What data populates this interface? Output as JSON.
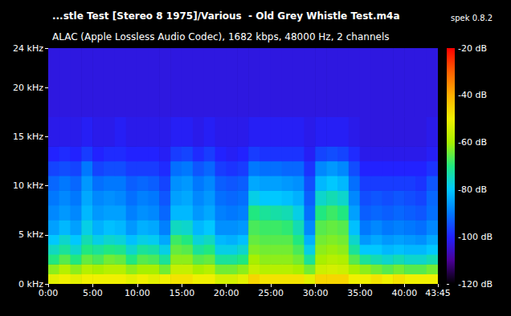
{
  "chart_data": {
    "type": "heatmap",
    "title": "...stle Test [Stereo 8 1975]/Various  - Old Grey Whistle Test.m4a",
    "annotations": [
      "spek 0.8.2"
    ],
    "subtitle": "ALAC (Apple Lossless Audio Codec), 1682 kbps, 48000 Hz, 2 channels",
    "xlim": [
      0,
      2625
    ],
    "xticks": [
      {
        "value": 0,
        "label": "0:00"
      },
      {
        "value": 300,
        "label": "5:00"
      },
      {
        "value": 600,
        "label": "10:00"
      },
      {
        "value": 900,
        "label": "15:00"
      },
      {
        "value": 1200,
        "label": "20:00"
      },
      {
        "value": 1500,
        "label": "25:00"
      },
      {
        "value": 1800,
        "label": "30:00"
      },
      {
        "value": 2100,
        "label": "35:00"
      },
      {
        "value": 2400,
        "label": "40:00"
      },
      {
        "value": 2625,
        "label": "43:45"
      }
    ],
    "ylim": [
      0,
      24
    ],
    "yticks": [
      {
        "value": 0,
        "label": "0 kHz"
      },
      {
        "value": 5,
        "label": "5 kHz"
      },
      {
        "value": 10,
        "label": "10 kHz"
      },
      {
        "value": 15,
        "label": "15 kHz"
      },
      {
        "value": 20,
        "label": "20 kHz"
      },
      {
        "value": 24,
        "label": "24 kHz"
      }
    ],
    "x_edges": [
      0,
      75,
      150,
      225,
      300,
      375,
      450,
      525,
      600,
      675,
      750,
      825,
      900,
      975,
      1050,
      1125,
      1200,
      1275,
      1350,
      1425,
      1500,
      1575,
      1650,
      1725,
      1800,
      1875,
      1950,
      2025,
      2100,
      2175,
      2250,
      2325,
      2400,
      2475,
      2550,
      2625
    ],
    "y_edges": [
      0,
      1,
      2,
      3,
      4,
      5,
      6.5,
      8,
      9.5,
      11,
      12.5,
      14,
      17,
      24
    ],
    "cells": [
      [
        -52,
        -50,
        -52,
        -50,
        -50,
        -50,
        -50,
        -52,
        -50,
        -52,
        -50,
        -48,
        -48,
        -50,
        -50,
        -54,
        -54,
        -52,
        -46,
        -48,
        -48,
        -48,
        -48,
        -52,
        -46,
        -46,
        -46,
        -50,
        -50,
        -48,
        -50,
        -48,
        -50,
        -50,
        -50
      ],
      [
        -62,
        -58,
        -62,
        -58,
        -60,
        -58,
        -58,
        -62,
        -60,
        -60,
        -64,
        -56,
        -56,
        -60,
        -58,
        -64,
        -64,
        -62,
        -56,
        -58,
        -58,
        -58,
        -60,
        -64,
        -55,
        -54,
        -55,
        -60,
        -62,
        -64,
        -66,
        -64,
        -66,
        -66,
        -64
      ],
      [
        -70,
        -66,
        -70,
        -65,
        -67,
        -64,
        -65,
        -70,
        -66,
        -67,
        -72,
        -62,
        -62,
        -66,
        -65,
        -72,
        -72,
        -70,
        -60,
        -62,
        -62,
        -62,
        -64,
        -72,
        -60,
        -58,
        -59,
        -66,
        -72,
        -74,
        -76,
        -74,
        -76,
        -76,
        -74
      ],
      [
        -75,
        -72,
        -76,
        -70,
        -72,
        -70,
        -71,
        -76,
        -72,
        -73,
        -78,
        -65,
        -66,
        -72,
        -70,
        -78,
        -78,
        -76,
        -63,
        -64,
        -64,
        -64,
        -67,
        -78,
        -62,
        -61,
        -62,
        -72,
        -80,
        -80,
        -82,
        -81,
        -82,
        -82,
        -80
      ],
      [
        -80,
        -76,
        -80,
        -74,
        -78,
        -76,
        -77,
        -81,
        -78,
        -79,
        -84,
        -68,
        -70,
        -77,
        -75,
        -82,
        -83,
        -81,
        -65,
        -66,
        -66,
        -66,
        -70,
        -83,
        -64,
        -63,
        -64,
        -76,
        -86,
        -84,
        -86,
        -85,
        -86,
        -87,
        -84
      ],
      [
        -85,
        -82,
        -85,
        -78,
        -83,
        -81,
        -82,
        -86,
        -83,
        -84,
        -89,
        -75,
        -76,
        -82,
        -80,
        -87,
        -87,
        -86,
        -67,
        -68,
        -68,
        -69,
        -74,
        -88,
        -66,
        -65,
        -66,
        -81,
        -90,
        -88,
        -90,
        -89,
        -90,
        -91,
        -88
      ],
      [
        -88,
        -86,
        -88,
        -82,
        -86,
        -85,
        -85,
        -89,
        -87,
        -88,
        -92,
        -82,
        -82,
        -86,
        -84,
        -89,
        -90,
        -89,
        -70,
        -72,
        -73,
        -74,
        -78,
        -91,
        -70,
        -68,
        -70,
        -85,
        -93,
        -92,
        -93,
        -92,
        -93,
        -94,
        -91
      ],
      [
        -90,
        -88,
        -90,
        -84,
        -88,
        -87,
        -88,
        -91,
        -89,
        -90,
        -94,
        -85,
        -84,
        -88,
        -86,
        -91,
        -92,
        -91,
        -78,
        -80,
        -80,
        -81,
        -83,
        -93,
        -76,
        -74,
        -76,
        -88,
        -95,
        -94,
        -95,
        -94,
        -95,
        -96,
        -92
      ],
      [
        -92,
        -90,
        -92,
        -86,
        -91,
        -90,
        -90,
        -93,
        -92,
        -93,
        -96,
        -87,
        -86,
        -90,
        -88,
        -93,
        -94,
        -93,
        -84,
        -85,
        -85,
        -86,
        -87,
        -95,
        -82,
        -80,
        -82,
        -91,
        -97,
        -97,
        -97,
        -97,
        -97,
        -98,
        -94
      ],
      [
        -96,
        -95,
        -96,
        -90,
        -96,
        -95,
        -95,
        -97,
        -97,
        -97,
        -99,
        -91,
        -90,
        -94,
        -92,
        -97,
        -98,
        -97,
        -90,
        -91,
        -91,
        -92,
        -92,
        -98,
        -88,
        -86,
        -88,
        -95,
        -100,
        -100,
        -100,
        -100,
        -100,
        -100,
        -98
      ],
      [
        -100,
        -99,
        -100,
        -97,
        -100,
        -99,
        -99,
        -100,
        -100,
        -100,
        -101,
        -97,
        -96,
        -99,
        -97,
        -100,
        -101,
        -100,
        -97,
        -98,
        -98,
        -98,
        -98,
        -101,
        -96,
        -95,
        -96,
        -99,
        -102,
        -102,
        -102,
        -102,
        -102,
        -102,
        -101
      ],
      [
        -102,
        -102,
        -102,
        -101,
        -102,
        -102,
        -101,
        -102,
        -102,
        -102,
        -102,
        -101,
        -101,
        -102,
        -101,
        -102,
        -102,
        -102,
        -101,
        -101,
        -101,
        -101,
        -101,
        -102,
        -101,
        -101,
        -101,
        -102,
        -103,
        -103,
        -103,
        -103,
        -103,
        -103,
        -102
      ],
      [
        -103,
        -103,
        -103,
        -103,
        -103,
        -103,
        -103,
        -103,
        -103,
        -103,
        -103,
        -103,
        -103,
        -103,
        -103,
        -103,
        -103,
        -103,
        -103,
        -103,
        -103,
        -103,
        -103,
        -103,
        -103,
        -103,
        -103,
        -103,
        -103,
        -103,
        -103,
        -103,
        -103,
        -103,
        -103
      ]
    ],
    "colorbar": {
      "range": [
        -120,
        -20
      ],
      "ticks": [
        {
          "value": -120,
          "label": "-120 dB"
        },
        {
          "value": -100,
          "label": "-100 dB"
        },
        {
          "value": -80,
          "label": "-80 dB"
        },
        {
          "value": -60,
          "label": "-60 dB"
        },
        {
          "value": -40,
          "label": "-40 dB"
        },
        {
          "value": -20,
          "label": "-20 dB"
        }
      ]
    }
  }
}
